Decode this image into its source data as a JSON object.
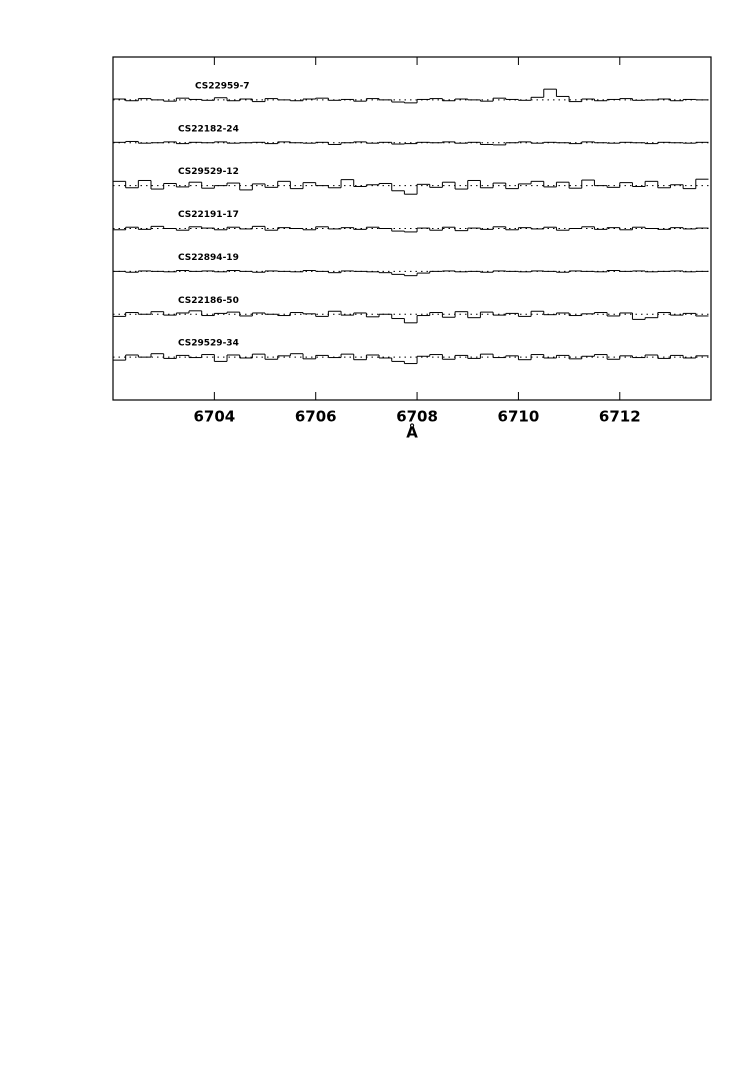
{
  "chart_data": {
    "type": "step",
    "xlabel": "Å",
    "xlim": [
      6702,
      6713.8
    ],
    "ylim": [
      0,
      8
    ],
    "xticks": [
      6704,
      6706,
      6708,
      6710,
      6712
    ],
    "x": [
      6702.125,
      6702.375,
      6702.625,
      6702.875,
      6703.125,
      6703.375,
      6703.625,
      6703.875,
      6704.125,
      6704.375,
      6704.625,
      6704.875,
      6705.125,
      6705.375,
      6705.625,
      6705.875,
      6706.125,
      6706.375,
      6706.625,
      6706.875,
      6707.125,
      6707.375,
      6707.625,
      6707.875,
      6708.125,
      6708.375,
      6708.625,
      6708.875,
      6709.125,
      6709.375,
      6709.625,
      6709.875,
      6710.125,
      6710.375,
      6710.625,
      6710.875,
      6711.125,
      6711.375,
      6711.625,
      6711.875,
      6712.125,
      6712.375,
      6712.625,
      6712.875,
      6713.125,
      6713.375,
      6713.625
    ],
    "color": "#000000",
    "series": [
      {
        "name": "CS22959-7",
        "baseline": 7,
        "values": [
          7.02,
          6.98,
          7.03,
          7.0,
          6.97,
          7.04,
          7.01,
          6.99,
          7.05,
          6.98,
          7.02,
          6.96,
          7.03,
          7.0,
          6.98,
          7.02,
          7.04,
          6.99,
          7.01,
          6.97,
          7.03,
          7.0,
          6.95,
          6.93,
          7.01,
          7.03,
          6.98,
          7.02,
          7.0,
          6.97,
          7.04,
          7.01,
          6.99,
          7.06,
          7.25,
          7.08,
          6.96,
          7.02,
          6.98,
          7.01,
          7.03,
          6.99,
          7.0,
          7.02,
          6.98,
          7.01,
          7.0
        ]
      },
      {
        "name": "CS22182-24",
        "baseline": 6,
        "values": [
          6.01,
          6.03,
          5.99,
          6.0,
          6.02,
          5.98,
          6.01,
          6.0,
          6.02,
          5.99,
          6.0,
          6.01,
          5.98,
          6.02,
          6.0,
          5.99,
          6.01,
          5.96,
          6.0,
          6.02,
          5.99,
          6.01,
          5.97,
          5.98,
          6.01,
          6.0,
          6.02,
          5.99,
          6.01,
          5.96,
          5.95,
          6.0,
          6.02,
          5.99,
          6.01,
          6.0,
          5.98,
          6.02,
          6.0,
          5.99,
          6.01,
          6.0,
          5.98,
          6.01,
          6.0,
          5.99,
          6.01
        ]
      },
      {
        "name": "CS29529-12",
        "baseline": 5,
        "values": [
          5.1,
          4.95,
          5.12,
          4.92,
          5.05,
          4.97,
          5.08,
          4.94,
          5.0,
          5.06,
          4.9,
          5.04,
          4.96,
          5.1,
          4.93,
          5.07,
          5.0,
          4.95,
          5.14,
          4.98,
          5.02,
          5.05,
          4.88,
          4.8,
          5.03,
          4.96,
          5.08,
          4.92,
          5.12,
          4.95,
          5.06,
          4.93,
          5.04,
          5.1,
          4.97,
          5.08,
          4.94,
          5.13,
          5.0,
          4.96,
          5.07,
          4.98,
          5.1,
          4.95,
          5.02,
          4.93,
          5.15
        ]
      },
      {
        "name": "CS22191-17",
        "baseline": 4,
        "values": [
          3.97,
          4.03,
          3.98,
          4.05,
          4.0,
          3.96,
          4.04,
          4.01,
          3.97,
          4.03,
          3.99,
          4.05,
          3.96,
          4.02,
          4.0,
          3.97,
          4.04,
          3.99,
          4.02,
          3.98,
          4.03,
          4.0,
          3.94,
          3.92,
          4.01,
          3.96,
          4.03,
          3.95,
          4.01,
          3.98,
          4.04,
          3.97,
          4.02,
          3.99,
          4.03,
          3.96,
          4.0,
          4.04,
          3.98,
          4.02,
          3.97,
          4.03,
          4.0,
          3.98,
          4.02,
          3.99,
          4.01
        ]
      },
      {
        "name": "CS22894-19",
        "baseline": 3,
        "values": [
          3.0,
          2.98,
          3.01,
          3.0,
          2.99,
          3.02,
          3.0,
          3.01,
          2.99,
          3.02,
          3.0,
          2.98,
          3.01,
          3.0,
          2.99,
          3.02,
          3.0,
          2.97,
          3.01,
          3.0,
          2.99,
          2.97,
          2.93,
          2.9,
          2.96,
          3.0,
          3.01,
          2.99,
          3.0,
          2.98,
          3.01,
          3.0,
          2.99,
          3.01,
          3.0,
          2.98,
          3.01,
          3.0,
          2.99,
          3.02,
          3.0,
          3.01,
          2.99,
          3.0,
          3.01,
          2.99,
          3.0
        ]
      },
      {
        "name": "CS22186-50",
        "baseline": 2,
        "values": [
          1.95,
          2.04,
          2.0,
          2.06,
          1.98,
          2.03,
          2.08,
          1.97,
          2.02,
          2.05,
          1.96,
          2.03,
          2.0,
          1.97,
          2.04,
          2.01,
          1.95,
          2.07,
          1.98,
          2.03,
          1.94,
          2.0,
          1.9,
          1.8,
          1.97,
          2.04,
          1.93,
          2.06,
          1.92,
          2.05,
          1.98,
          2.02,
          1.95,
          2.07,
          1.99,
          2.03,
          1.97,
          2.01,
          2.04,
          1.96,
          2.03,
          1.88,
          1.92,
          2.04,
          1.98,
          2.02,
          1.96
        ]
      },
      {
        "name": "CS29529-34",
        "baseline": 1,
        "values": [
          0.93,
          1.05,
          1.0,
          1.08,
          0.97,
          1.04,
          0.99,
          1.06,
          0.9,
          1.05,
          0.98,
          1.07,
          0.95,
          1.03,
          1.08,
          0.96,
          1.04,
          0.99,
          1.07,
          0.94,
          1.05,
          0.98,
          0.9,
          0.85,
          1.02,
          1.06,
          0.95,
          1.04,
          0.97,
          1.07,
          0.99,
          1.03,
          0.94,
          1.06,
          0.98,
          1.04,
          0.96,
          1.02,
          1.06,
          0.95,
          1.03,
          0.99,
          1.05,
          0.97,
          1.04,
          0.98,
          1.03
        ]
      }
    ]
  }
}
